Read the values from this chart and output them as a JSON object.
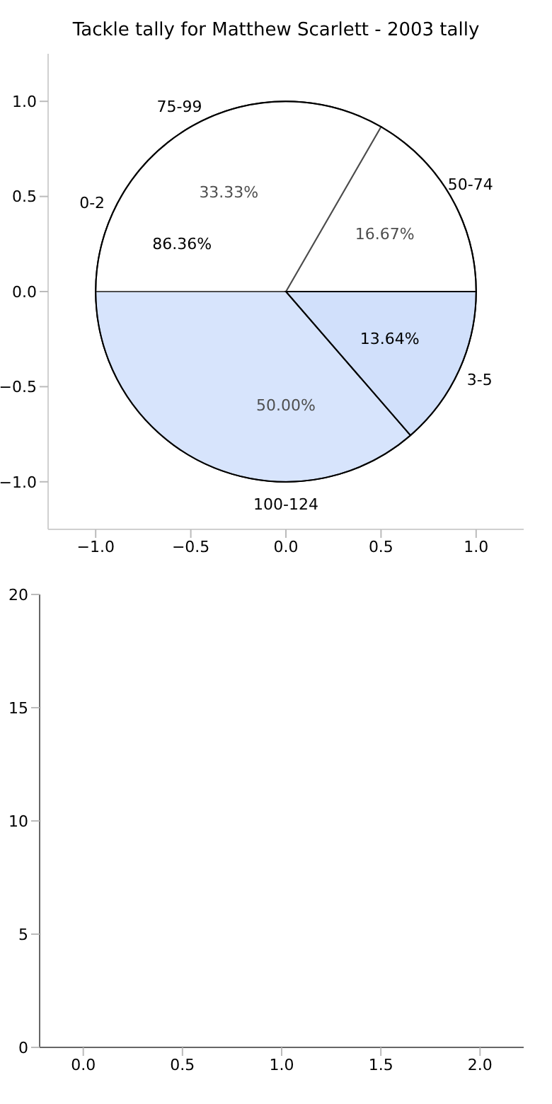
{
  "chart_data": [
    {
      "type": "scatter",
      "title": "Tackle tally for Matthew Scarlett - 2003 tally",
      "xlim": [
        -1.25,
        1.25
      ],
      "ylim": [
        -1.25,
        1.25
      ],
      "xticks": [
        {
          "value": -1,
          "label": "−1.0"
        },
        {
          "value": -0.5,
          "label": "−0.5"
        },
        {
          "value": 0,
          "label": "0.0"
        },
        {
          "value": 0.5,
          "label": "0.5"
        },
        {
          "value": 1,
          "label": "1.0"
        }
      ],
      "yticks": [
        {
          "value": -1,
          "label": "−1.0"
        },
        {
          "value": -0.5,
          "label": "−0.5"
        },
        {
          "value": 0,
          "label": "0.0"
        },
        {
          "value": 0.5,
          "label": "0.5"
        },
        {
          "value": 1,
          "label": "1.0"
        }
      ]
    },
    {
      "type": "pie",
      "categories": [
        "0-2",
        "3-5"
      ],
      "values": [
        86.36,
        13.64
      ],
      "colors": [
        "#ffffff",
        "#eaf1fd"
      ],
      "value_labels": [
        "86.36%",
        "13.64%"
      ]
    },
    {
      "type": "pie",
      "categories": [
        "50-74",
        "75-99",
        "100-124"
      ],
      "values": [
        16.67,
        33.33,
        50.0
      ],
      "colors": [
        "#ffffff",
        "#ffffff",
        "#c6d9fb"
      ],
      "value_labels": [
        "16.67%",
        "33.33%",
        "50.00%"
      ]
    },
    {
      "type": "scatter",
      "xlim": [
        -0.22,
        2.22
      ],
      "ylim": [
        0,
        20
      ],
      "xticks": [
        {
          "value": 0,
          "label": "0.0"
        },
        {
          "value": 0.5,
          "label": "0.5"
        },
        {
          "value": 1,
          "label": "1.0"
        },
        {
          "value": 1.5,
          "label": "1.5"
        },
        {
          "value": 2,
          "label": "2.0"
        }
      ],
      "yticks": [
        0,
        5,
        10,
        15,
        20
      ]
    }
  ]
}
